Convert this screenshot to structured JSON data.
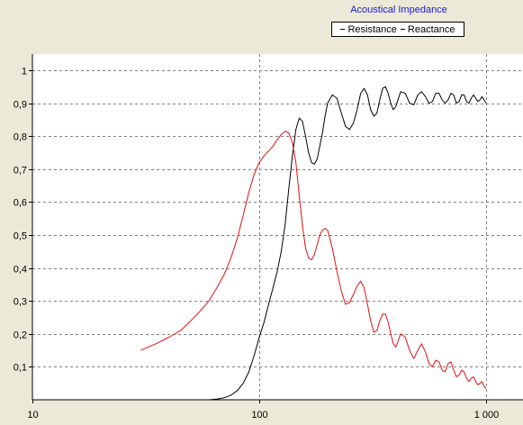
{
  "chart_data": {
    "type": "line",
    "title": "Acoustical Impedance",
    "x_scale": "log",
    "xlim": [
      10,
      1000
    ],
    "ylim": [
      0,
      1.05
    ],
    "grid": true,
    "legend_position": "top-right",
    "x_ticks": [
      10,
      100,
      1000
    ],
    "x_tick_labels": [
      "10",
      "100",
      "1 000"
    ],
    "y_ticks": [
      0.1,
      0.2,
      0.3,
      0.4,
      0.5,
      0.6,
      0.7,
      0.8,
      0.9,
      1
    ],
    "y_tick_labels": [
      "0,1",
      "0,2",
      "0,3",
      "0,4",
      "0,5",
      "0,6",
      "0,7",
      "0,8",
      "0,9",
      "1"
    ],
    "series": [
      {
        "name": "Resistance",
        "color": "#000000",
        "x": [
          60,
          65,
          70,
          75,
          80,
          85,
          90,
          95,
          100,
          105,
          110,
          115,
          120,
          125,
          130,
          135,
          140,
          145,
          150,
          155,
          160,
          165,
          170,
          175,
          180,
          185,
          190,
          195,
          200,
          210,
          220,
          230,
          240,
          250,
          260,
          270,
          280,
          290,
          300,
          310,
          320,
          330,
          340,
          350,
          360,
          370,
          380,
          390,
          400,
          420,
          440,
          460,
          480,
          500,
          520,
          540,
          560,
          580,
          600,
          620,
          640,
          660,
          680,
          700,
          720,
          740,
          760,
          780,
          800,
          820,
          840,
          860,
          880,
          900,
          920,
          940,
          960,
          980,
          1000
        ],
        "y": [
          0.0,
          0.002,
          0.006,
          0.014,
          0.028,
          0.05,
          0.085,
          0.135,
          0.19,
          0.235,
          0.29,
          0.34,
          0.39,
          0.45,
          0.53,
          0.64,
          0.74,
          0.82,
          0.855,
          0.845,
          0.8,
          0.75,
          0.72,
          0.715,
          0.73,
          0.77,
          0.81,
          0.86,
          0.9,
          0.925,
          0.915,
          0.87,
          0.83,
          0.82,
          0.84,
          0.88,
          0.93,
          0.945,
          0.925,
          0.88,
          0.86,
          0.87,
          0.91,
          0.945,
          0.95,
          0.93,
          0.9,
          0.88,
          0.89,
          0.935,
          0.93,
          0.9,
          0.895,
          0.925,
          0.935,
          0.92,
          0.9,
          0.905,
          0.93,
          0.93,
          0.91,
          0.9,
          0.91,
          0.93,
          0.925,
          0.9,
          0.905,
          0.925,
          0.925,
          0.905,
          0.9,
          0.915,
          0.925,
          0.915,
          0.905,
          0.91,
          0.92,
          0.91,
          0.9
        ]
      },
      {
        "name": "Reactance",
        "color": "#e01010",
        "x": [
          30,
          35,
          40,
          45,
          50,
          55,
          60,
          65,
          70,
          75,
          80,
          85,
          90,
          95,
          100,
          105,
          110,
          115,
          120,
          125,
          130,
          135,
          140,
          145,
          150,
          155,
          160,
          165,
          170,
          175,
          180,
          185,
          190,
          195,
          200,
          210,
          220,
          230,
          240,
          250,
          260,
          270,
          280,
          290,
          300,
          310,
          320,
          330,
          340,
          350,
          360,
          370,
          380,
          390,
          400,
          420,
          440,
          460,
          480,
          500,
          520,
          540,
          560,
          580,
          600,
          620,
          640,
          660,
          680,
          700,
          720,
          740,
          760,
          780,
          800,
          820,
          840,
          860,
          880,
          900,
          920,
          940,
          960,
          980,
          1000
        ],
        "y": [
          0.15,
          0.17,
          0.19,
          0.21,
          0.24,
          0.27,
          0.3,
          0.34,
          0.38,
          0.43,
          0.49,
          0.56,
          0.63,
          0.685,
          0.72,
          0.74,
          0.755,
          0.77,
          0.79,
          0.805,
          0.815,
          0.81,
          0.78,
          0.72,
          0.62,
          0.53,
          0.46,
          0.43,
          0.425,
          0.44,
          0.47,
          0.5,
          0.515,
          0.52,
          0.515,
          0.46,
          0.39,
          0.33,
          0.29,
          0.295,
          0.32,
          0.345,
          0.36,
          0.34,
          0.29,
          0.24,
          0.205,
          0.21,
          0.24,
          0.26,
          0.26,
          0.235,
          0.2,
          0.17,
          0.16,
          0.2,
          0.19,
          0.15,
          0.125,
          0.15,
          0.17,
          0.145,
          0.11,
          0.1,
          0.12,
          0.115,
          0.09,
          0.085,
          0.11,
          0.115,
          0.09,
          0.07,
          0.075,
          0.09,
          0.085,
          0.065,
          0.055,
          0.065,
          0.07,
          0.055,
          0.045,
          0.05,
          0.055,
          0.04,
          0.035
        ]
      }
    ]
  }
}
